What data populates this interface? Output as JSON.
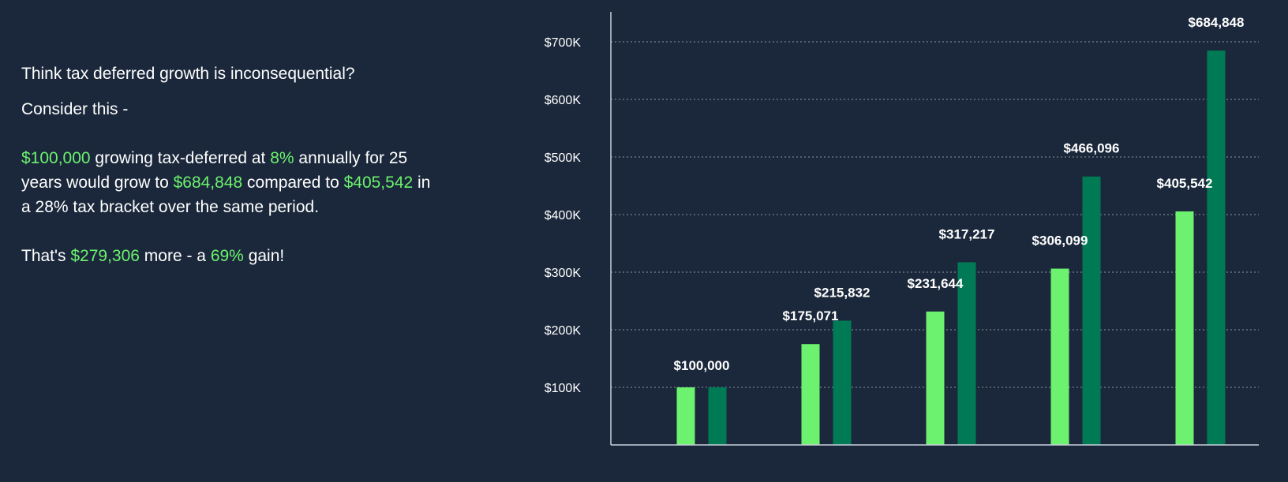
{
  "text": {
    "question": "Think tax deferred growth is inconsequential?",
    "consider": "Consider this -",
    "body": {
      "amount": "$100,000",
      "t1": " growing tax-deferred at ",
      "rate": "8%",
      "t2": " annually for 25 years would grow to ",
      "deferred_total": "$684,848",
      "t3": " compared to ",
      "taxed_total": "$405,542",
      "t4": " in a 28% tax bracket over the same period."
    },
    "summary": {
      "t1": "That's ",
      "difference": "$279,306",
      "t2": " more - a ",
      "gain": "69%",
      "t3": " gain!"
    }
  },
  "colors": {
    "background": "#1b283b",
    "highlight": "#6cf26e",
    "series_taxed": "#6cf26e",
    "series_deferred": "#007a55",
    "gridline": "#8a96a6",
    "axis": "#c9d1dc"
  },
  "chart_data": {
    "type": "bar",
    "categories": [
      "",
      "",
      "",
      "",
      ""
    ],
    "series": [
      {
        "values": [
          100000,
          175071,
          231644,
          306099,
          405542
        ],
        "labels": [
          "$100,000",
          "$175,071",
          "$231,644",
          "$306,099",
          "$405,542"
        ],
        "color": "#6cf26e"
      },
      {
        "values": [
          100000,
          215832,
          317217,
          466096,
          684848
        ],
        "labels": [
          "",
          "$215,832",
          "$317,217",
          "$466,096",
          "$684,848"
        ],
        "color": "#007a55"
      }
    ],
    "ylim": [
      0,
      750000
    ],
    "yticks": [
      100000,
      200000,
      300000,
      400000,
      500000,
      600000,
      700000
    ],
    "ytick_labels": [
      "$100K",
      "$200K",
      "$300K",
      "$400K",
      "$500K",
      "$600K",
      "$700K"
    ],
    "grid": true,
    "grid_style": "dotted",
    "legend": "none",
    "title": "",
    "xlabel": "",
    "ylabel": ""
  }
}
